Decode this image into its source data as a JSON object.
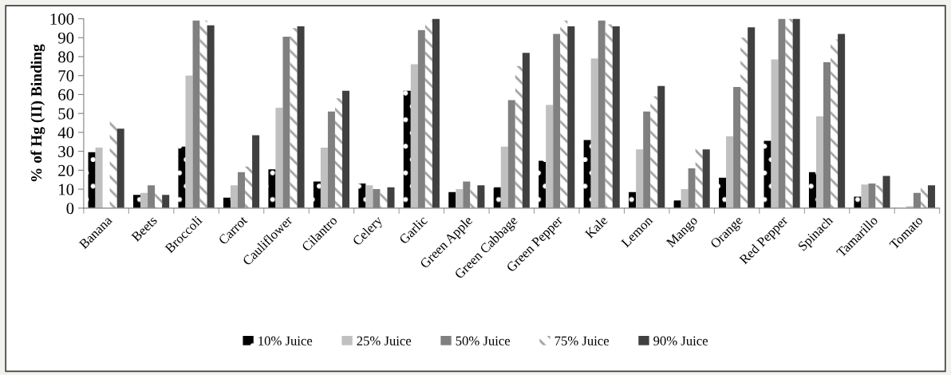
{
  "chart_data": {
    "type": "bar",
    "ylabel": "% of Hg (II) Binding",
    "categories": [
      "Banana",
      "Beets",
      "Broccoli",
      "Carrot",
      "Cauliflower",
      "Cilantro",
      "Celery",
      "Garlic",
      "Green Apple",
      "Green Cabbage",
      "Green Pepper",
      "Kale",
      "Lemon",
      "Mango",
      "Orange",
      "Red Pepper",
      "Spinach",
      "Tamarillo",
      "Tomato"
    ],
    "series": [
      {
        "name": "10% Juice",
        "color": "#000000",
        "values": [
          29.5,
          7,
          32.5,
          5.5,
          20.5,
          14,
          13,
          62,
          8.5,
          11,
          25,
          36,
          8.5,
          4,
          16,
          35.5,
          19,
          6,
          0
        ]
      },
      {
        "name": "25% Juice",
        "color": "#c0c0c0",
        "values": [
          32,
          8,
          70,
          12,
          53,
          32,
          12,
          76,
          10,
          32.5,
          54.5,
          79,
          31,
          10,
          38,
          78.5,
          48.5,
          12.5,
          1
        ]
      },
      {
        "name": "50% Juice",
        "color": "#808080",
        "values": [
          0,
          12,
          99,
          19,
          90.5,
          51,
          10,
          94,
          14,
          57,
          92,
          99,
          51,
          21,
          64,
          100,
          77,
          13,
          8
        ]
      },
      {
        "name": "75% Juice",
        "color": "#a0a0a0",
        "values": [
          47,
          8,
          99,
          22,
          95,
          58,
          8,
          99,
          11,
          75,
          99,
          97,
          59,
          32,
          90,
          100,
          89,
          12,
          12
        ]
      },
      {
        "name": "90% Juice",
        "color": "#404040",
        "values": [
          42,
          7,
          96.5,
          38.5,
          96,
          62,
          11,
          100,
          12,
          82,
          96,
          96,
          64.5,
          31,
          95.5,
          100,
          92,
          17,
          12
        ]
      }
    ],
    "ylim": [
      0,
      100
    ],
    "yticks": [
      0,
      10,
      20,
      30,
      40,
      50,
      60,
      70,
      80,
      90,
      100
    ],
    "grid": false,
    "legend": "bottom"
  }
}
